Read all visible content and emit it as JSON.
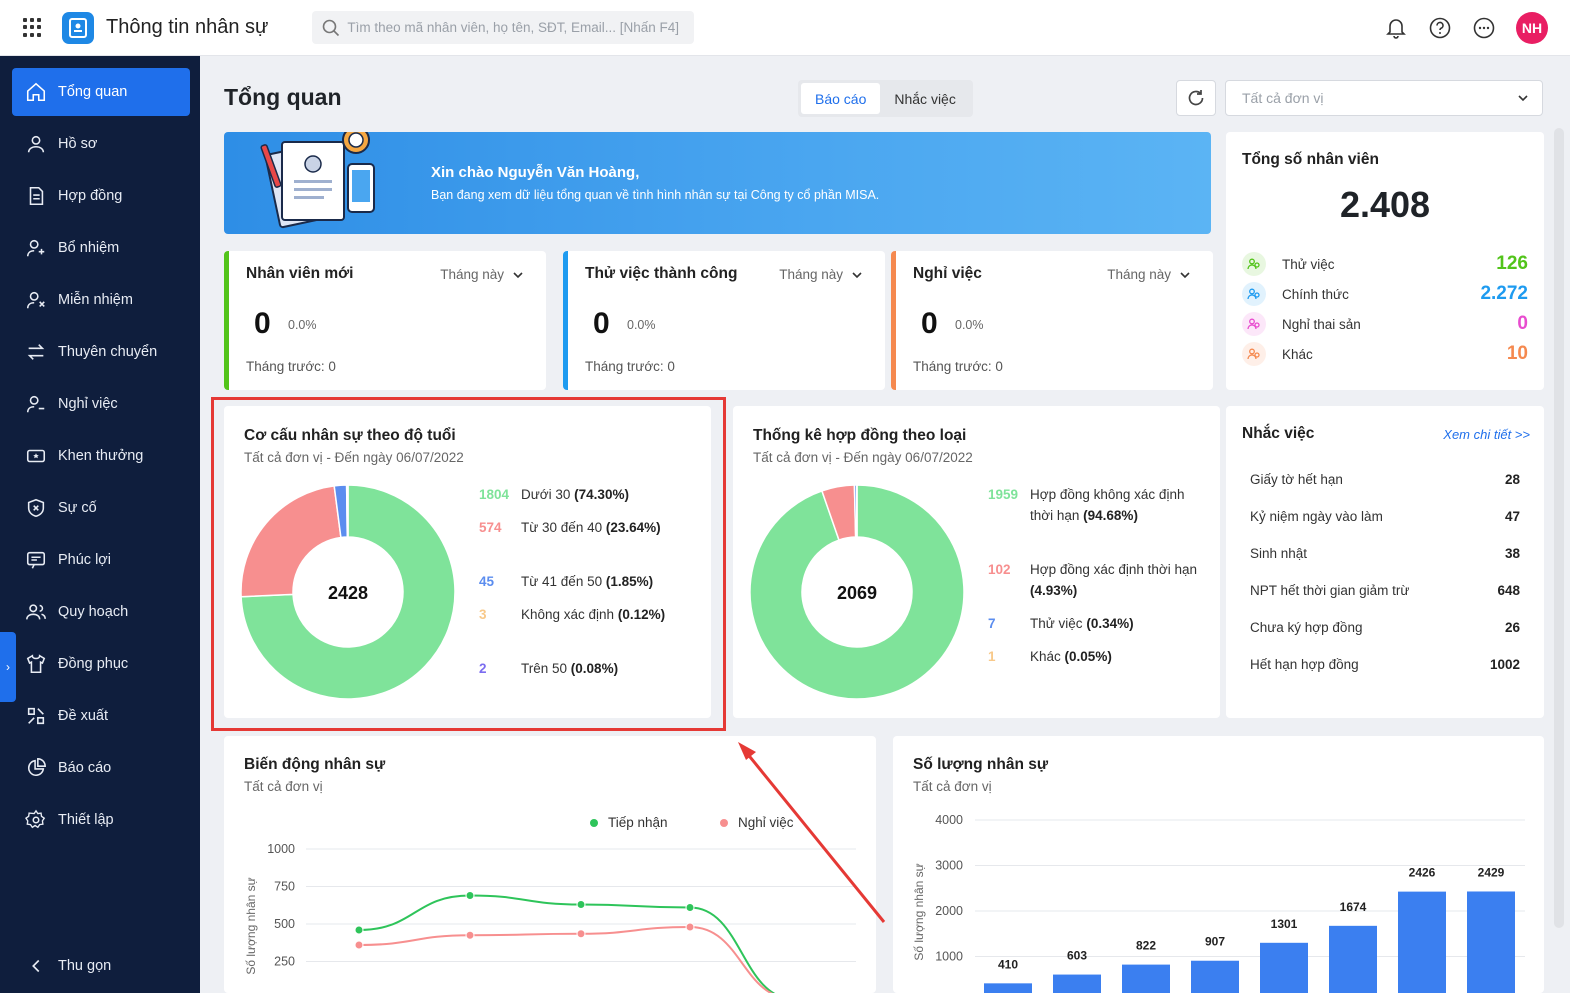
{
  "app": {
    "title": "Thông tin nhân sự",
    "user_initials": "NH"
  },
  "search": {
    "placeholder": "Tìm theo mã nhân viên, họ tên, SĐT, Email... [Nhấn F4]"
  },
  "sidebar": {
    "items": [
      {
        "label": "Tổng quan",
        "icon": "home-icon",
        "active": true
      },
      {
        "label": "Hồ sơ",
        "icon": "user-icon"
      },
      {
        "label": "Hợp đồng",
        "icon": "document-icon"
      },
      {
        "label": "Bổ nhiệm",
        "icon": "user-plus-icon"
      },
      {
        "label": "Miễn nhiệm",
        "icon": "user-x-icon"
      },
      {
        "label": "Thuyên chuyển",
        "icon": "transfer-icon"
      },
      {
        "label": "Nghỉ việc",
        "icon": "user-minus-icon"
      },
      {
        "label": "Khen thưởng",
        "icon": "ticket-icon"
      },
      {
        "label": "Sự cố",
        "icon": "shield-x-icon"
      },
      {
        "label": "Phúc lợi",
        "icon": "benefit-icon"
      },
      {
        "label": "Quy hoạch",
        "icon": "users-icon"
      },
      {
        "label": "Đồng phục",
        "icon": "shirt-icon"
      },
      {
        "label": "Đề xuất",
        "icon": "proposal-icon"
      },
      {
        "label": "Báo cáo",
        "icon": "pie-icon"
      },
      {
        "label": "Thiết lập",
        "icon": "gear-icon"
      }
    ],
    "collapse_label": "Thu gọn"
  },
  "main": {
    "title": "Tổng quan",
    "tabs": [
      {
        "label": "Báo cáo",
        "active": true
      },
      {
        "label": "Nhắc việc"
      }
    ],
    "unit_placeholder": "Tất cả đơn vị"
  },
  "banner": {
    "greeting": "Xin chào Nguyễn Văn Hoàng,",
    "message": "Bạn đang xem dữ liệu tổng quan về tình hình nhân sự tại Công ty cổ phần MISA."
  },
  "stats": [
    {
      "title": "Nhân viên mới",
      "period": "Tháng này",
      "value": "0",
      "percent": "0.0%",
      "previous": "Tháng trước: 0",
      "color": "#52c41a"
    },
    {
      "title": "Thử việc thành công",
      "period": "Tháng này",
      "value": "0",
      "percent": "0.0%",
      "previous": "Tháng trước: 0",
      "color": "#1e9bf0"
    },
    {
      "title": "Nghỉ việc",
      "period": "Tháng này",
      "value": "0",
      "percent": "0.0%",
      "previous": "Tháng trước: 0",
      "color": "#f5894f"
    }
  ],
  "total": {
    "title": "Tổng số nhân viên",
    "value": "2.408",
    "rows": [
      {
        "label": "Thử việc",
        "value": "126",
        "color": "#52c41a",
        "icon": "probation-icon"
      },
      {
        "label": "Chính thức",
        "value": "2.272",
        "color": "#1e9bf0",
        "icon": "official-icon"
      },
      {
        "label": "Nghỉ thai sản",
        "value": "0",
        "color": "#e84ccf",
        "icon": "maternity-icon"
      },
      {
        "label": "Khác",
        "value": "10",
        "color": "#f5894f",
        "icon": "other-icon"
      }
    ]
  },
  "age_chart": {
    "title": "Cơ cấu nhân sự theo độ tuổi",
    "subtitle": "Tất cả đơn vị - Đến ngày 06/07/2022",
    "total": "2428",
    "items": [
      {
        "value": "1804",
        "label": "Dưới 30",
        "percent": "(74.30%)",
        "color": "#7fe39a"
      },
      {
        "value": "574",
        "label": "Từ 30 đến 40",
        "percent": "(23.64%)",
        "color": "#f78f8f"
      },
      {
        "value": "45",
        "label": "Từ 41 đến 50",
        "percent": "(1.85%)",
        "color": "#5b8def"
      },
      {
        "value": "3",
        "label": "Không xác định",
        "percent": "(0.12%)",
        "color": "#f8c98a"
      },
      {
        "value": "2",
        "label": "Trên 50",
        "percent": "(0.08%)",
        "color": "#7b6cf0"
      }
    ]
  },
  "contract_chart": {
    "title": "Thống kê hợp đồng theo loại",
    "subtitle": "Tất cả đơn vị - Đến ngày 06/07/2022",
    "total": "2069",
    "items": [
      {
        "value": "1959",
        "label": "Hợp đồng không xác định thời hạn",
        "percent": "(94.68%)",
        "color": "#7fe39a"
      },
      {
        "value": "102",
        "label": "Hợp đồng xác định thời hạn",
        "percent": "(4.93%)",
        "color": "#f78f8f"
      },
      {
        "value": "7",
        "label": "Thử việc",
        "percent": "(0.34%)",
        "color": "#5b8def"
      },
      {
        "value": "1",
        "label": "Khác",
        "percent": "(0.05%)",
        "color": "#f8c98a"
      }
    ]
  },
  "reminders": {
    "title": "Nhắc việc",
    "more": "Xem chi tiết >>",
    "rows": [
      {
        "label": "Giấy tờ hết hạn",
        "value": "28"
      },
      {
        "label": "Kỷ niệm ngày vào làm",
        "value": "47"
      },
      {
        "label": "Sinh nhật",
        "value": "38"
      },
      {
        "label": "NPT hết thời gian giảm trừ",
        "value": "648"
      },
      {
        "label": "Chưa ký hợp đồng",
        "value": "26"
      },
      {
        "label": "Hết hạn hợp đồng",
        "value": "1002"
      }
    ]
  },
  "chart_data": [
    {
      "type": "line",
      "title": "Biến động nhân sự",
      "subtitle": "Tất cả đơn vị",
      "ylabel": "Số lượng nhân sự",
      "yticks": [
        "1000",
        "750",
        "500",
        "250"
      ],
      "ylim": [
        0,
        1000
      ],
      "series": [
        {
          "name": "Tiếp nhận",
          "color": "#2ec45a",
          "values": [
            460,
            690,
            630,
            610,
            0
          ]
        },
        {
          "name": "Nghỉ việc",
          "color": "#f78f8f",
          "values": [
            360,
            425,
            435,
            480,
            0
          ]
        }
      ],
      "legend": "top-right"
    },
    {
      "type": "bar",
      "title": "Số lượng nhân sự",
      "subtitle": "Tất cả đơn vị",
      "ylabel": "Số lượng nhân sự",
      "yticks": [
        "4000",
        "3000",
        "2000",
        "1000"
      ],
      "ylim": [
        0,
        4000
      ],
      "values": [
        410,
        603,
        822,
        907,
        1301,
        1674,
        2426,
        2429
      ],
      "labels": [
        "410",
        "603",
        "822",
        "907",
        "1301",
        "1674",
        "2426",
        "2429"
      ],
      "color": "#3b7ff0"
    }
  ]
}
